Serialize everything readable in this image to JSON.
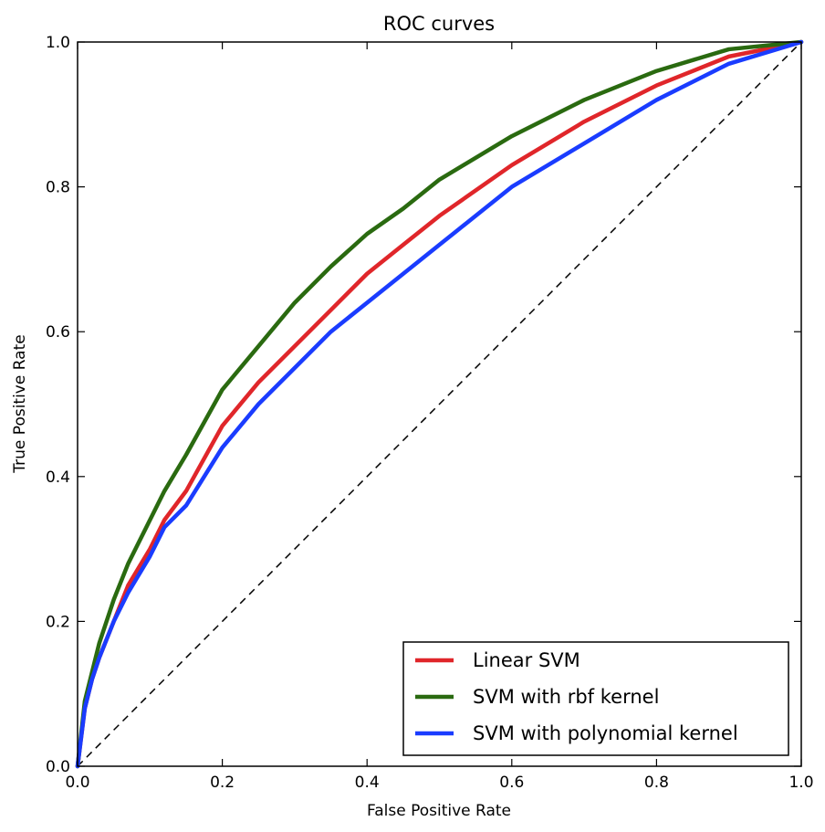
{
  "chart_data": {
    "type": "line",
    "title": "ROC curves",
    "xlabel": "False Positive Rate",
    "ylabel": "True Positive Rate",
    "xlim": [
      0.0,
      1.0
    ],
    "ylim": [
      0.0,
      1.0
    ],
    "x_ticks": [
      "0.0",
      "0.2",
      "0.4",
      "0.6",
      "0.8",
      "1.0"
    ],
    "y_ticks": [
      "0.0",
      "0.2",
      "0.4",
      "0.6",
      "0.8",
      "1.0"
    ],
    "grid": false,
    "legend_position": "lower-right",
    "reference_line": {
      "x": [
        0.0,
        1.0
      ],
      "y": [
        0.0,
        1.0
      ],
      "color": "#000000",
      "style": "dashed"
    },
    "series": [
      {
        "name": "Linear SVM",
        "color": "#e0262a",
        "x": [
          0,
          0.01,
          0.02,
          0.03,
          0.05,
          0.07,
          0.1,
          0.12,
          0.15,
          0.2,
          0.25,
          0.3,
          0.35,
          0.4,
          0.45,
          0.5,
          0.6,
          0.7,
          0.8,
          0.9,
          1.0
        ],
        "y": [
          0,
          0.08,
          0.12,
          0.15,
          0.2,
          0.25,
          0.3,
          0.34,
          0.38,
          0.47,
          0.53,
          0.58,
          0.63,
          0.68,
          0.72,
          0.76,
          0.83,
          0.89,
          0.94,
          0.98,
          1.0
        ]
      },
      {
        "name": "SVM with rbf kernel",
        "color": "#2a6a10",
        "x": [
          0,
          0.01,
          0.02,
          0.03,
          0.05,
          0.07,
          0.1,
          0.12,
          0.15,
          0.2,
          0.25,
          0.3,
          0.35,
          0.4,
          0.45,
          0.5,
          0.6,
          0.7,
          0.8,
          0.9,
          1.0
        ],
        "y": [
          0,
          0.09,
          0.13,
          0.17,
          0.23,
          0.28,
          0.34,
          0.38,
          0.43,
          0.52,
          0.58,
          0.64,
          0.69,
          0.735,
          0.77,
          0.81,
          0.87,
          0.92,
          0.96,
          0.99,
          1.0
        ]
      },
      {
        "name": "SVM with polynomial kernel",
        "color": "#1a3cff",
        "x": [
          0,
          0.01,
          0.02,
          0.03,
          0.05,
          0.07,
          0.1,
          0.12,
          0.15,
          0.2,
          0.25,
          0.3,
          0.35,
          0.4,
          0.45,
          0.5,
          0.6,
          0.7,
          0.8,
          0.9,
          1.0
        ],
        "y": [
          0,
          0.08,
          0.12,
          0.15,
          0.2,
          0.24,
          0.29,
          0.33,
          0.36,
          0.44,
          0.5,
          0.55,
          0.6,
          0.64,
          0.68,
          0.72,
          0.8,
          0.86,
          0.92,
          0.97,
          1.0
        ]
      }
    ]
  }
}
